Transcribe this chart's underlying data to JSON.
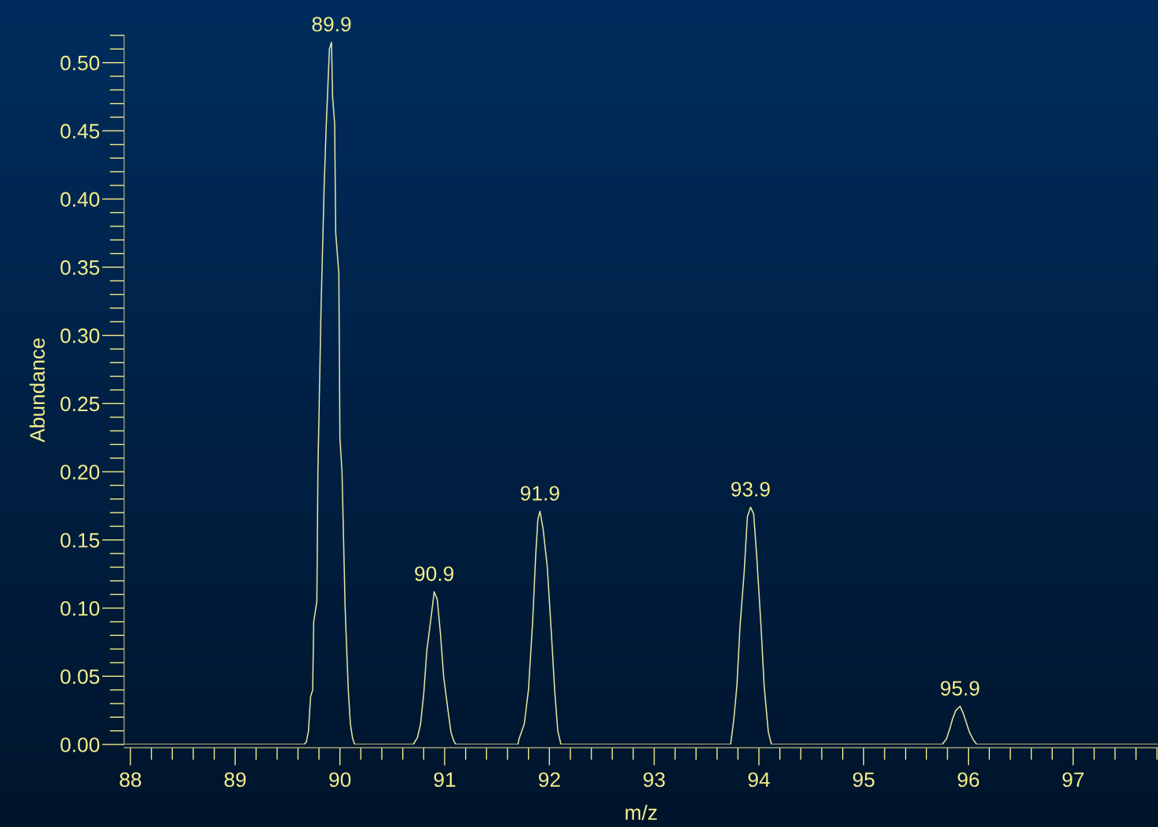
{
  "chart_data": {
    "type": "line",
    "xlabel": "m/z",
    "ylabel": "Abundance",
    "series": [
      {
        "color": "#e6e6a0",
        "x": [
          87.94,
          89.66,
          89.68,
          89.7,
          89.72,
          89.74,
          89.75,
          89.78,
          89.79,
          89.82,
          89.85,
          89.87,
          89.9,
          89.92,
          89.93,
          89.95,
          89.96,
          89.99,
          90.0,
          90.02,
          90.05,
          90.07,
          90.08,
          90.1,
          90.12,
          90.14,
          90.7,
          90.74,
          90.77,
          90.8,
          90.83,
          90.87,
          90.9,
          90.93,
          90.96,
          90.99,
          91.03,
          91.06,
          91.09,
          91.11,
          91.7,
          91.71,
          91.76,
          91.8,
          91.84,
          91.87,
          91.89,
          91.91,
          91.94,
          91.98,
          92.02,
          92.05,
          92.08,
          92.11,
          93.73,
          93.74,
          93.76,
          93.79,
          93.82,
          93.86,
          93.89,
          93.92,
          93.95,
          93.98,
          94.02,
          94.05,
          94.09,
          94.12,
          95.75,
          95.79,
          95.82,
          95.85,
          95.88,
          95.92,
          95.95,
          95.98,
          96.01,
          96.05,
          96.08,
          97.81
        ],
        "values": [
          0,
          0,
          0.002,
          0.01,
          0.035,
          0.04,
          0.09,
          0.105,
          0.2,
          0.32,
          0.41,
          0.455,
          0.51,
          0.515,
          0.475,
          0.455,
          0.375,
          0.345,
          0.225,
          0.2,
          0.1,
          0.06,
          0.04,
          0.015,
          0.005,
          0,
          0,
          0.005,
          0.015,
          0.037,
          0.069,
          0.093,
          0.112,
          0.106,
          0.081,
          0.05,
          0.026,
          0.009,
          0.002,
          0,
          0,
          0.004,
          0.015,
          0.04,
          0.09,
          0.14,
          0.165,
          0.171,
          0.158,
          0.13,
          0.08,
          0.04,
          0.01,
          0,
          0,
          0.006,
          0.018,
          0.043,
          0.087,
          0.127,
          0.167,
          0.174,
          0.169,
          0.137,
          0.087,
          0.043,
          0.009,
          0,
          0,
          0.004,
          0.011,
          0.019,
          0.025,
          0.028,
          0.023,
          0.016,
          0.009,
          0.003,
          0,
          0
        ]
      }
    ],
    "annotations": [
      {
        "text": "89.9",
        "x": 89.92,
        "y": 0.515
      },
      {
        "text": "90.9",
        "x": 90.9,
        "y": 0.112
      },
      {
        "text": "91.9",
        "x": 91.91,
        "y": 0.171
      },
      {
        "text": "93.9",
        "x": 93.92,
        "y": 0.174
      },
      {
        "text": "95.9",
        "x": 95.92,
        "y": 0.028
      }
    ],
    "xlim": [
      87.94,
      97.81
    ],
    "ylim": [
      0,
      0.52
    ],
    "xticks": [
      88,
      89,
      90,
      91,
      92,
      93,
      94,
      95,
      96,
      97
    ],
    "yticks": [
      {
        "value": 0,
        "label": "0.00"
      },
      {
        "value": 0.05,
        "label": "0.05"
      },
      {
        "value": 0.1,
        "label": "0.10"
      },
      {
        "value": 0.15,
        "label": "0.15"
      },
      {
        "value": 0.2,
        "label": "0.20"
      },
      {
        "value": 0.25,
        "label": "0.25"
      },
      {
        "value": 0.3,
        "label": "0.30"
      },
      {
        "value": 0.35,
        "label": "0.35"
      },
      {
        "value": 0.4,
        "label": "0.40"
      },
      {
        "value": 0.45,
        "label": "0.45"
      },
      {
        "value": 0.5,
        "label": "0.50"
      }
    ],
    "grid": false,
    "legend": false,
    "marker": "none",
    "line_style": "solid"
  }
}
